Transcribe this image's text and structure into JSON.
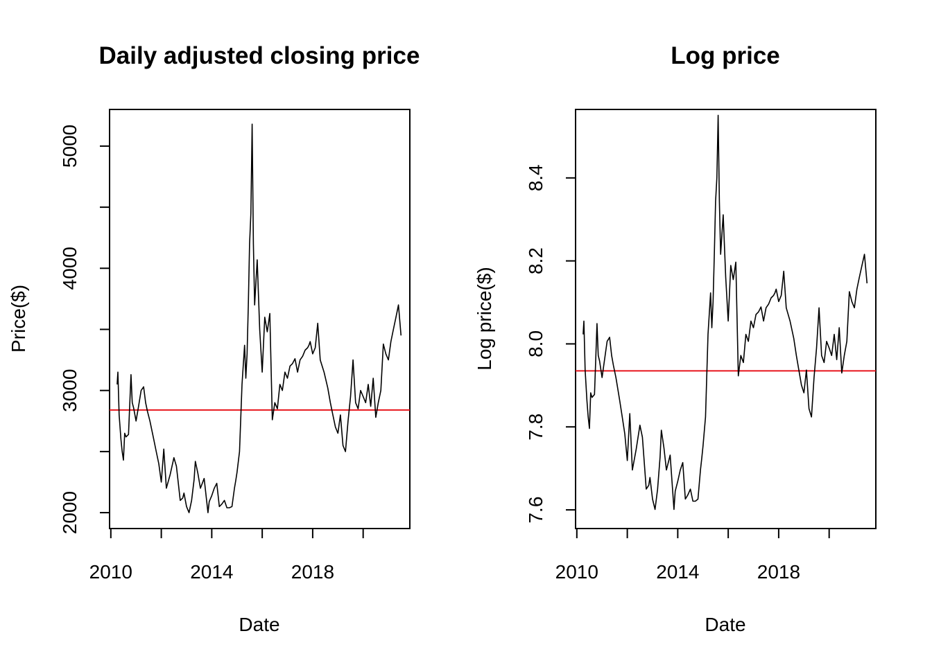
{
  "chart_data": [
    {
      "type": "line",
      "title": "Daily adjusted closing price",
      "xlabel": "Date",
      "ylabel": "Price($)",
      "xlim": [
        2009.95,
        2021.85
      ],
      "ylim": [
        1870,
        5300
      ],
      "x_ticks": [
        2010,
        2012,
        2014,
        2016,
        2018,
        2020
      ],
      "x_tick_labels": [
        "2010",
        "",
        "2014",
        "",
        "2018",
        ""
      ],
      "y_ticks": [
        2000,
        2500,
        3000,
        3500,
        4000,
        4500,
        5000
      ],
      "y_tick_labels": [
        "2000",
        "",
        "3000",
        "",
        "4000",
        "",
        "5000"
      ],
      "hline": {
        "y": 2840,
        "color": "#e8141c"
      },
      "grid": false,
      "series": [
        {
          "color": "#000000",
          "x": [
            2010.25,
            2010.28,
            2010.33,
            2010.4,
            2010.45,
            2010.5,
            2010.55,
            2010.6,
            2010.7,
            2010.8,
            2010.85,
            2010.9,
            2011.0,
            2011.1,
            2011.2,
            2011.3,
            2011.38,
            2011.45,
            2011.55,
            2011.7,
            2011.8,
            2011.9,
            2012.0,
            2012.1,
            2012.2,
            2012.35,
            2012.5,
            2012.6,
            2012.75,
            2012.85,
            2012.9,
            2013.0,
            2013.1,
            2013.2,
            2013.3,
            2013.35,
            2013.45,
            2013.55,
            2013.7,
            2013.85,
            2013.9,
            2014.0,
            2014.1,
            2014.2,
            2014.3,
            2014.4,
            2014.5,
            2014.6,
            2014.7,
            2014.8,
            2014.9,
            2014.95,
            2015.0,
            2015.1,
            2015.2,
            2015.3,
            2015.35,
            2015.4,
            2015.45,
            2015.5,
            2015.55,
            2015.6,
            2015.65,
            2015.7,
            2015.8,
            2015.9,
            2016.0,
            2016.1,
            2016.2,
            2016.3,
            2016.4,
            2016.5,
            2016.6,
            2016.7,
            2016.8,
            2016.9,
            2017.0,
            2017.1,
            2017.2,
            2017.3,
            2017.4,
            2017.5,
            2017.6,
            2017.7,
            2017.8,
            2017.85,
            2017.9,
            2018.0,
            2018.1,
            2018.2,
            2018.3,
            2018.45,
            2018.6,
            2018.7,
            2018.8,
            2018.9,
            2019.0,
            2019.1,
            2019.2,
            2019.3,
            2019.4,
            2019.5,
            2019.6,
            2019.7,
            2019.8,
            2019.9,
            2020.0,
            2020.1,
            2020.2,
            2020.3,
            2020.4,
            2020.5,
            2020.6,
            2020.7,
            2020.8,
            2020.9,
            2021.0,
            2021.1,
            2021.2,
            2021.3,
            2021.4,
            2021.5
          ],
          "y": [
            3050,
            3150,
            2800,
            2600,
            2500,
            2430,
            2650,
            2620,
            2640,
            3130,
            2900,
            2860,
            2750,
            2870,
            3000,
            3030,
            2900,
            2830,
            2750,
            2600,
            2500,
            2400,
            2250,
            2520,
            2200,
            2310,
            2450,
            2380,
            2100,
            2120,
            2160,
            2050,
            2000,
            2100,
            2270,
            2420,
            2320,
            2200,
            2280,
            2000,
            2090,
            2140,
            2200,
            2240,
            2050,
            2070,
            2100,
            2040,
            2040,
            2050,
            2200,
            2260,
            2330,
            2500,
            3050,
            3370,
            3100,
            3300,
            3700,
            4200,
            4450,
            5180,
            4200,
            3700,
            4070,
            3500,
            3150,
            3600,
            3480,
            3630,
            2760,
            2900,
            2850,
            3050,
            3000,
            3150,
            3100,
            3200,
            3220,
            3260,
            3150,
            3250,
            3280,
            3330,
            3350,
            3370,
            3400,
            3300,
            3350,
            3550,
            3250,
            3150,
            3020,
            2900,
            2800,
            2700,
            2650,
            2800,
            2550,
            2500,
            2750,
            2950,
            3250,
            2900,
            2850,
            3000,
            2950,
            2900,
            3050,
            2870,
            3100,
            2780,
            2900,
            3000,
            3380,
            3300,
            3250,
            3400,
            3500,
            3600,
            3700,
            3450
          ]
        }
      ]
    },
    {
      "type": "line",
      "title": "Log price",
      "xlabel": "Date",
      "ylabel": "Log price($)",
      "xlim": [
        2009.95,
        2021.85
      ],
      "ylim": [
        7.555,
        8.565
      ],
      "x_ticks": [
        2010,
        2012,
        2014,
        2016,
        2018,
        2020
      ],
      "x_tick_labels": [
        "2010",
        "",
        "2014",
        "",
        "2018",
        ""
      ],
      "y_ticks": [
        7.6,
        7.8,
        8.0,
        8.2,
        8.4
      ],
      "y_tick_labels": [
        "7.6",
        "7.8",
        "8.0",
        "8.2",
        "8.4"
      ],
      "hline": {
        "y": 7.935,
        "color": "#e8141c"
      },
      "grid": false,
      "series": [
        {
          "color": "#000000",
          "x": [
            2010.25,
            2010.28,
            2010.33,
            2010.4,
            2010.45,
            2010.5,
            2010.55,
            2010.6,
            2010.7,
            2010.8,
            2010.85,
            2010.9,
            2011.0,
            2011.1,
            2011.2,
            2011.3,
            2011.38,
            2011.45,
            2011.55,
            2011.7,
            2011.8,
            2011.9,
            2012.0,
            2012.1,
            2012.2,
            2012.35,
            2012.5,
            2012.6,
            2012.75,
            2012.85,
            2012.9,
            2013.0,
            2013.1,
            2013.2,
            2013.3,
            2013.35,
            2013.45,
            2013.55,
            2013.7,
            2013.85,
            2013.9,
            2014.0,
            2014.1,
            2014.2,
            2014.3,
            2014.4,
            2014.5,
            2014.6,
            2014.7,
            2014.8,
            2014.9,
            2014.95,
            2015.0,
            2015.1,
            2015.2,
            2015.3,
            2015.35,
            2015.4,
            2015.45,
            2015.5,
            2015.55,
            2015.6,
            2015.65,
            2015.7,
            2015.8,
            2015.9,
            2016.0,
            2016.1,
            2016.2,
            2016.3,
            2016.4,
            2016.5,
            2016.6,
            2016.7,
            2016.8,
            2016.9,
            2017.0,
            2017.1,
            2017.2,
            2017.3,
            2017.4,
            2017.5,
            2017.6,
            2017.7,
            2017.8,
            2017.85,
            2017.9,
            2018.0,
            2018.1,
            2018.2,
            2018.3,
            2018.45,
            2018.6,
            2018.7,
            2018.8,
            2018.9,
            2019.0,
            2019.1,
            2019.2,
            2019.3,
            2019.4,
            2019.5,
            2019.6,
            2019.7,
            2019.8,
            2019.9,
            2020.0,
            2020.1,
            2020.2,
            2020.3,
            2020.4,
            2020.5,
            2020.6,
            2020.7,
            2020.8,
            2020.9,
            2021.0,
            2021.1,
            2021.2,
            2021.3,
            2021.4,
            2021.5
          ],
          "y": [
            8.023,
            8.055,
            7.937,
            7.863,
            7.824,
            7.796,
            7.882,
            7.871,
            7.878,
            8.049,
            7.972,
            7.959,
            7.919,
            7.962,
            8.006,
            8.016,
            7.972,
            7.948,
            7.919,
            7.863,
            7.824,
            7.783,
            7.719,
            7.832,
            7.696,
            7.745,
            7.804,
            7.775,
            7.65,
            7.659,
            7.678,
            7.626,
            7.601,
            7.65,
            7.728,
            7.792,
            7.75,
            7.696,
            7.732,
            7.601,
            7.645,
            7.669,
            7.696,
            7.714,
            7.626,
            7.636,
            7.65,
            7.621,
            7.621,
            7.626,
            7.696,
            7.723,
            7.754,
            7.824,
            8.023,
            8.123,
            8.039,
            8.102,
            8.216,
            8.343,
            8.401,
            8.551,
            8.343,
            8.216,
            8.311,
            8.161,
            8.055,
            8.189,
            8.155,
            8.197,
            7.923,
            7.972,
            7.955,
            8.023,
            8.006,
            8.055,
            8.039,
            8.071,
            8.077,
            8.089,
            8.055,
            8.087,
            8.096,
            8.111,
            8.117,
            8.123,
            8.132,
            8.102,
            8.117,
            8.175,
            8.087,
            8.055,
            8.013,
            7.972,
            7.937,
            7.901,
            7.882,
            7.937,
            7.844,
            7.824,
            7.919,
            7.99,
            8.087,
            7.972,
            7.955,
            8.006,
            7.99,
            7.972,
            8.023,
            7.962,
            8.039,
            7.93,
            7.972,
            8.006,
            8.126,
            8.102,
            8.087,
            8.132,
            8.161,
            8.189,
            8.216,
            8.146
          ]
        }
      ]
    }
  ]
}
